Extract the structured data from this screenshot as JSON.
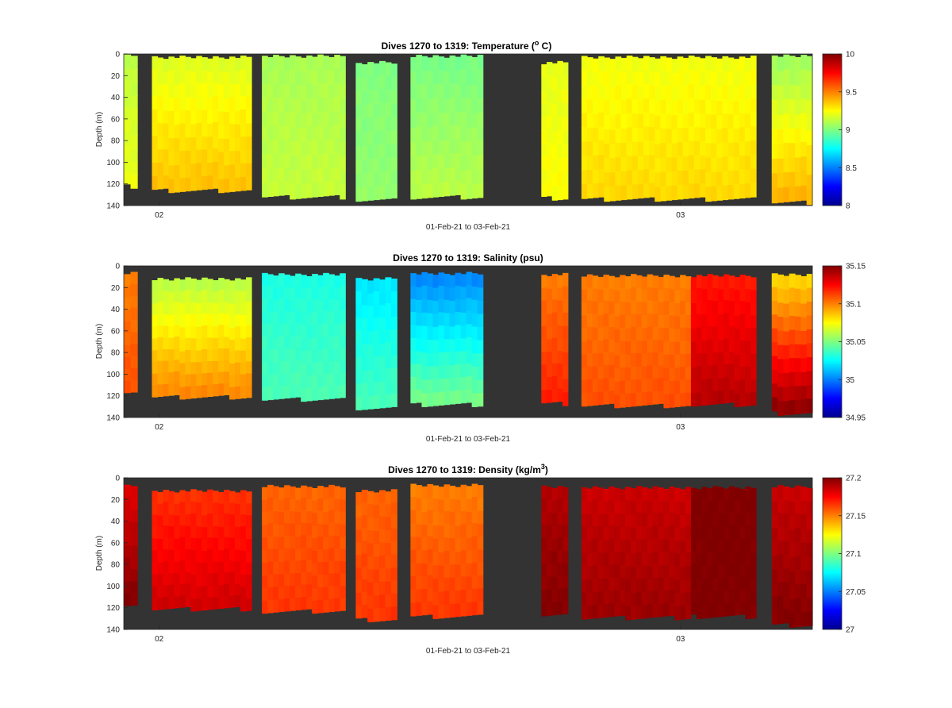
{
  "figure": {
    "background": "#ffffff",
    "plot_background": "#333333",
    "axis_color": "#262626"
  },
  "chart_data": [
    {
      "type": "heatmap",
      "title": "Dives 1270 to 1319: Temperature (",
      "title_superscript": "o",
      "title_suffix": " C)",
      "xlabel": "01-Feb-21 to 03-Feb-21",
      "ylabel": "Depth (m)",
      "ylim": [
        140,
        0
      ],
      "yticks": [
        0,
        20,
        40,
        60,
        80,
        100,
        120,
        140
      ],
      "xticks": [
        {
          "label": "02",
          "day": 2.0
        },
        {
          "label": "03",
          "day": 3.0
        }
      ],
      "xlim": [
        1.932,
        3.253
      ],
      "colorbar": {
        "min": 8,
        "max": 10,
        "ticks": [
          8,
          8.5,
          9,
          9.5,
          10
        ],
        "tick_labels": [
          "8",
          "8.5",
          "9",
          "9.5",
          "10"
        ]
      },
      "segments": [
        {
          "t0": 1.932,
          "t1": 1.958,
          "top": 2,
          "bottom": 122,
          "vtop": 9.12,
          "vbot": 9.22
        },
        {
          "t0": 1.986,
          "t1": 2.177,
          "top": 3,
          "bottom": 126,
          "vtop": 9.18,
          "vbot": 9.38
        },
        {
          "t0": 2.197,
          "t1": 2.357,
          "top": 2,
          "bottom": 132,
          "vtop": 9.08,
          "vbot": 9.14
        },
        {
          "t0": 2.377,
          "t1": 2.456,
          "top": 8,
          "bottom": 135,
          "vtop": 9.0,
          "vbot": 9.04
        },
        {
          "t0": 2.482,
          "t1": 2.621,
          "top": 2,
          "bottom": 132,
          "vtop": 8.98,
          "vbot": 9.12
        },
        {
          "t0": 2.733,
          "t1": 2.784,
          "top": 8,
          "bottom": 133,
          "vtop": 9.2,
          "vbot": 9.25
        },
        {
          "t0": 2.81,
          "t1": 3.145,
          "top": 3,
          "bottom": 134,
          "vtop": 9.22,
          "vbot": 9.33
        },
        {
          "t0": 3.175,
          "t1": 3.253,
          "top": 2,
          "bottom": 137,
          "vtop": 9.05,
          "vbot": 9.42
        }
      ]
    },
    {
      "type": "heatmap",
      "title": "Dives 1270 to 1319: Salinity (psu)",
      "title_superscript": "",
      "title_suffix": "",
      "xlabel": "01-Feb-21 to 03-Feb-21",
      "ylabel": "Depth (m)",
      "ylim": [
        140,
        0
      ],
      "yticks": [
        0,
        20,
        40,
        60,
        80,
        100,
        120,
        140
      ],
      "xticks": [
        {
          "label": "02",
          "day": 2.0
        },
        {
          "label": "03",
          "day": 3.0
        }
      ],
      "xlim": [
        1.932,
        3.253
      ],
      "colorbar": {
        "min": 34.95,
        "max": 35.15,
        "ticks": [
          34.95,
          35,
          35.05,
          35.1,
          35.15
        ],
        "tick_labels": [
          "34.95",
          "35",
          "35.05",
          "35.1",
          "35.15"
        ]
      },
      "segments": [
        {
          "t0": 1.932,
          "t1": 1.958,
          "top": 7,
          "bottom": 118,
          "vtop": 35.1,
          "vbot": 35.11
        },
        {
          "t0": 1.986,
          "t1": 2.177,
          "top": 12,
          "bottom": 121,
          "vtop": 35.06,
          "vbot": 35.1
        },
        {
          "t0": 2.197,
          "t1": 2.357,
          "top": 8,
          "bottom": 123,
          "vtop": 35.03,
          "vbot": 35.04
        },
        {
          "t0": 2.377,
          "t1": 2.456,
          "top": 12,
          "bottom": 131,
          "vtop": 35.02,
          "vbot": 35.04
        },
        {
          "t0": 2.482,
          "t1": 2.621,
          "top": 7,
          "bottom": 128,
          "vtop": 35.0,
          "vbot": 35.05
        },
        {
          "t0": 2.733,
          "t1": 2.784,
          "top": 8,
          "bottom": 127,
          "vtop": 35.1,
          "vbot": 35.12
        },
        {
          "t0": 2.81,
          "t1": 3.02,
          "top": 9,
          "bottom": 129,
          "vtop": 35.1,
          "vbot": 35.11
        },
        {
          "t0": 3.02,
          "t1": 3.145,
          "top": 9,
          "bottom": 128,
          "vtop": 35.12,
          "vbot": 35.14
        },
        {
          "t0": 3.175,
          "t1": 3.253,
          "top": 8,
          "bottom": 136,
          "vtop": 35.08,
          "vbot": 35.15
        }
      ]
    },
    {
      "type": "heatmap",
      "title": "Dives 1270 to 1319: Density (kg/m",
      "title_superscript": "3",
      "title_suffix": ")",
      "xlabel": "01-Feb-21 to 03-Feb-21",
      "ylabel": "Depth (m)",
      "ylim": [
        140,
        0
      ],
      "yticks": [
        0,
        20,
        40,
        60,
        80,
        100,
        120,
        140
      ],
      "xticks": [
        {
          "label": "02",
          "day": 2.0
        },
        {
          "label": "03",
          "day": 3.0
        }
      ],
      "xlim": [
        1.932,
        3.253
      ],
      "colorbar": {
        "min": 27,
        "max": 27.2,
        "ticks": [
          27,
          27.05,
          27.1,
          27.15,
          27.2
        ],
        "tick_labels": [
          "27",
          "27.05",
          "27.1",
          "27.15",
          "27.2"
        ]
      },
      "segments": [
        {
          "t0": 1.932,
          "t1": 1.958,
          "top": 7,
          "bottom": 118,
          "vtop": 27.18,
          "vbot": 27.2
        },
        {
          "t0": 1.986,
          "t1": 2.177,
          "top": 12,
          "bottom": 121,
          "vtop": 27.165,
          "vbot": 27.185
        },
        {
          "t0": 2.197,
          "t1": 2.357,
          "top": 8,
          "bottom": 123,
          "vtop": 27.155,
          "vbot": 27.165
        },
        {
          "t0": 2.377,
          "t1": 2.456,
          "top": 12,
          "bottom": 131,
          "vtop": 27.155,
          "vbot": 27.165
        },
        {
          "t0": 2.482,
          "t1": 2.621,
          "top": 7,
          "bottom": 128,
          "vtop": 27.15,
          "vbot": 27.165
        },
        {
          "t0": 2.733,
          "t1": 2.784,
          "top": 8,
          "bottom": 127,
          "vtop": 27.19,
          "vbot": 27.2
        },
        {
          "t0": 2.81,
          "t1": 3.02,
          "top": 9,
          "bottom": 129,
          "vtop": 27.185,
          "vbot": 27.195
        },
        {
          "t0": 3.02,
          "t1": 3.145,
          "top": 9,
          "bottom": 128,
          "vtop": 27.2,
          "vbot": 27.2
        },
        {
          "t0": 3.175,
          "t1": 3.253,
          "top": 8,
          "bottom": 136,
          "vtop": 27.185,
          "vbot": 27.2
        }
      ]
    }
  ]
}
